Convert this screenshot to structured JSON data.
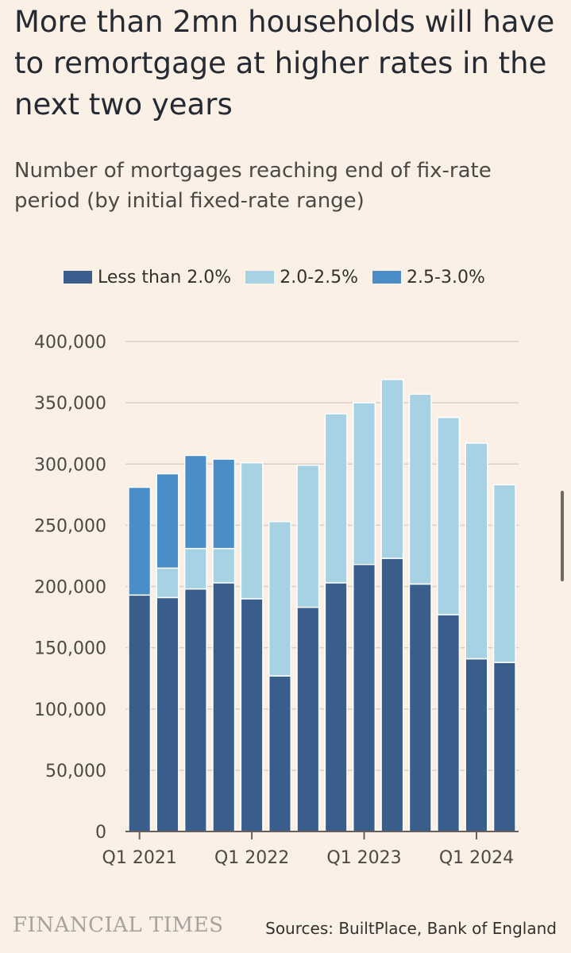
{
  "header": {
    "title": "More than 2mn households will have to remortgage at higher rates in the next two years",
    "subtitle": "Number of mortgages reaching end of fix-rate period (by initial fixed-rate range)"
  },
  "colors": {
    "background": "#fbf0e6",
    "less_than_2": "#3a5e8c",
    "range_2_2_5": "#a7d2e3",
    "range_2_5_3": "#4a8ec8",
    "gridline": "#d9cfc7",
    "axis": "#66605c"
  },
  "chart_data": {
    "type": "bar",
    "stacked": true,
    "title": "Number of mortgages reaching end of fix-rate period (by initial fixed-rate range)",
    "xlabel": "",
    "ylabel": "",
    "ylim": [
      0,
      400000
    ],
    "yticks": [
      0,
      50000,
      100000,
      150000,
      200000,
      250000,
      300000,
      350000,
      400000
    ],
    "ytick_labels": [
      "0",
      "50,000",
      "100,000",
      "150,000",
      "200,000",
      "250,000",
      "300,000",
      "350,000",
      "400,000"
    ],
    "grid": true,
    "legend_position": "top-left",
    "categories": [
      "Q1 2021",
      "Q2 2021",
      "Q3 2021",
      "Q4 2021",
      "Q1 2022",
      "Q2 2022",
      "Q3 2022",
      "Q4 2022",
      "Q1 2023",
      "Q2 2023",
      "Q3 2023",
      "Q4 2023",
      "Q1 2024",
      "Q2 2024"
    ],
    "x_tick_labels": [
      "Q1 2021",
      "",
      "",
      "",
      "Q1 2022",
      "",
      "",
      "",
      "Q1 2023",
      "",
      "",
      "",
      "Q1 2024",
      ""
    ],
    "series": [
      {
        "name": "Less than 2.0%",
        "color": "#3a5e8c",
        "values": [
          193000,
          191000,
          198000,
          203000,
          190000,
          127000,
          183000,
          203000,
          218000,
          223000,
          202000,
          177000,
          141000,
          138000
        ]
      },
      {
        "name": "2.0-2.5%",
        "color": "#a7d2e3",
        "values": [
          0,
          24000,
          33000,
          28000,
          111000,
          126000,
          116000,
          138000,
          132000,
          146000,
          155000,
          161000,
          176000,
          145000
        ]
      },
      {
        "name": "2.5-3.0%",
        "color": "#4a8ec8",
        "values": [
          88000,
          77000,
          76000,
          73000,
          0,
          0,
          0,
          0,
          0,
          0,
          0,
          0,
          0,
          0
        ]
      }
    ]
  },
  "footer": {
    "brand": "FINANCIAL TIMES",
    "source": "Sources: BuiltPlace, Bank of England"
  }
}
